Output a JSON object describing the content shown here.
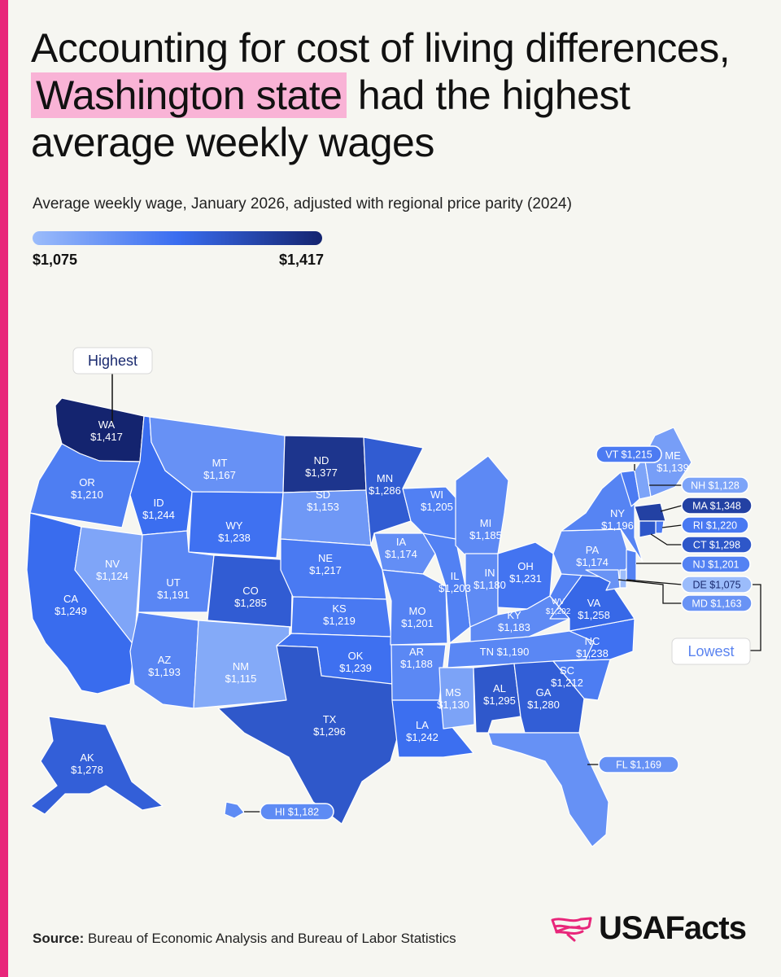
{
  "title": {
    "before": "Accounting for cost of living differences,",
    "highlight": "Washington state",
    "after": "had the highest average weekly wages"
  },
  "subtitle": "Average weekly wage, January 2026, adjusted with regional price parity (2024)",
  "legend": {
    "min": "$1,075",
    "max": "$1,417",
    "min_value": 1075,
    "max_value": 1417,
    "colors": [
      "#9bbcfb",
      "#3a6df0",
      "#14246f"
    ]
  },
  "callouts": {
    "highest": "Highest",
    "lowest": "Lowest"
  },
  "states": [
    {
      "abbr": "WA",
      "value": 1417,
      "label": "$1,417"
    },
    {
      "abbr": "OR",
      "value": 1210,
      "label": "$1,210"
    },
    {
      "abbr": "CA",
      "value": 1249,
      "label": "$1,249"
    },
    {
      "abbr": "NV",
      "value": 1124,
      "label": "$1,124"
    },
    {
      "abbr": "ID",
      "value": 1244,
      "label": "$1,244"
    },
    {
      "abbr": "MT",
      "value": 1167,
      "label": "$1,167"
    },
    {
      "abbr": "WY",
      "value": 1238,
      "label": "$1,238"
    },
    {
      "abbr": "UT",
      "value": 1191,
      "label": "$1,191"
    },
    {
      "abbr": "AZ",
      "value": 1193,
      "label": "$1,193"
    },
    {
      "abbr": "CO",
      "value": 1285,
      "label": "$1,285"
    },
    {
      "abbr": "NM",
      "value": 1115,
      "label": "$1,115"
    },
    {
      "abbr": "ND",
      "value": 1377,
      "label": "$1,377"
    },
    {
      "abbr": "SD",
      "value": 1153,
      "label": "$1,153"
    },
    {
      "abbr": "NE",
      "value": 1217,
      "label": "$1,217"
    },
    {
      "abbr": "KS",
      "value": 1219,
      "label": "$1,219"
    },
    {
      "abbr": "OK",
      "value": 1239,
      "label": "$1,239"
    },
    {
      "abbr": "TX",
      "value": 1296,
      "label": "$1,296"
    },
    {
      "abbr": "MN",
      "value": 1286,
      "label": "$1,286"
    },
    {
      "abbr": "IA",
      "value": 1174,
      "label": "$1,174"
    },
    {
      "abbr": "MO",
      "value": 1201,
      "label": "$1,201"
    },
    {
      "abbr": "AR",
      "value": 1188,
      "label": "$1,188"
    },
    {
      "abbr": "LA",
      "value": 1242,
      "label": "$1,242"
    },
    {
      "abbr": "WI",
      "value": 1205,
      "label": "$1,205"
    },
    {
      "abbr": "IL",
      "value": 1203,
      "label": "$1,203"
    },
    {
      "abbr": "MI",
      "value": 1185,
      "label": "$1,185"
    },
    {
      "abbr": "IN",
      "value": 1180,
      "label": "$1,180"
    },
    {
      "abbr": "OH",
      "value": 1231,
      "label": "$1,231"
    },
    {
      "abbr": "KY",
      "value": 1183,
      "label": "$1,183"
    },
    {
      "abbr": "TN",
      "value": 1190,
      "label": "$1,190"
    },
    {
      "abbr": "MS",
      "value": 1130,
      "label": "$1,130"
    },
    {
      "abbr": "AL",
      "value": 1295,
      "label": "$1,295"
    },
    {
      "abbr": "GA",
      "value": 1280,
      "label": "$1,280"
    },
    {
      "abbr": "FL",
      "value": 1169,
      "label": "$1,169"
    },
    {
      "abbr": "SC",
      "value": 1212,
      "label": "$1,212"
    },
    {
      "abbr": "NC",
      "value": 1238,
      "label": "$1,238"
    },
    {
      "abbr": "VA",
      "value": 1258,
      "label": "$1,258"
    },
    {
      "abbr": "WV",
      "value": 1202,
      "label": "$1,202"
    },
    {
      "abbr": "PA",
      "value": 1174,
      "label": "$1,174"
    },
    {
      "abbr": "NY",
      "value": 1196,
      "label": "$1,196"
    },
    {
      "abbr": "VT",
      "value": 1215,
      "label": "$1,215"
    },
    {
      "abbr": "NH",
      "value": 1128,
      "label": "$1,128"
    },
    {
      "abbr": "ME",
      "value": 1139,
      "label": "$1,139"
    },
    {
      "abbr": "MA",
      "value": 1348,
      "label": "$1,348"
    },
    {
      "abbr": "RI",
      "value": 1220,
      "label": "$1,220"
    },
    {
      "abbr": "CT",
      "value": 1298,
      "label": "$1,298"
    },
    {
      "abbr": "NJ",
      "value": 1201,
      "label": "$1,201"
    },
    {
      "abbr": "DE",
      "value": 1075,
      "label": "$1,075"
    },
    {
      "abbr": "MD",
      "value": 1163,
      "label": "$1,163"
    },
    {
      "abbr": "AK",
      "value": 1278,
      "label": "$1,278"
    },
    {
      "abbr": "HI",
      "value": 1182,
      "label": "$1,182"
    }
  ],
  "source": {
    "label": "Source:",
    "text": "Bureau of Economic Analysis and Bureau of Labor Statistics"
  },
  "brand": {
    "name": "USAFacts",
    "color": "#e8267a"
  }
}
